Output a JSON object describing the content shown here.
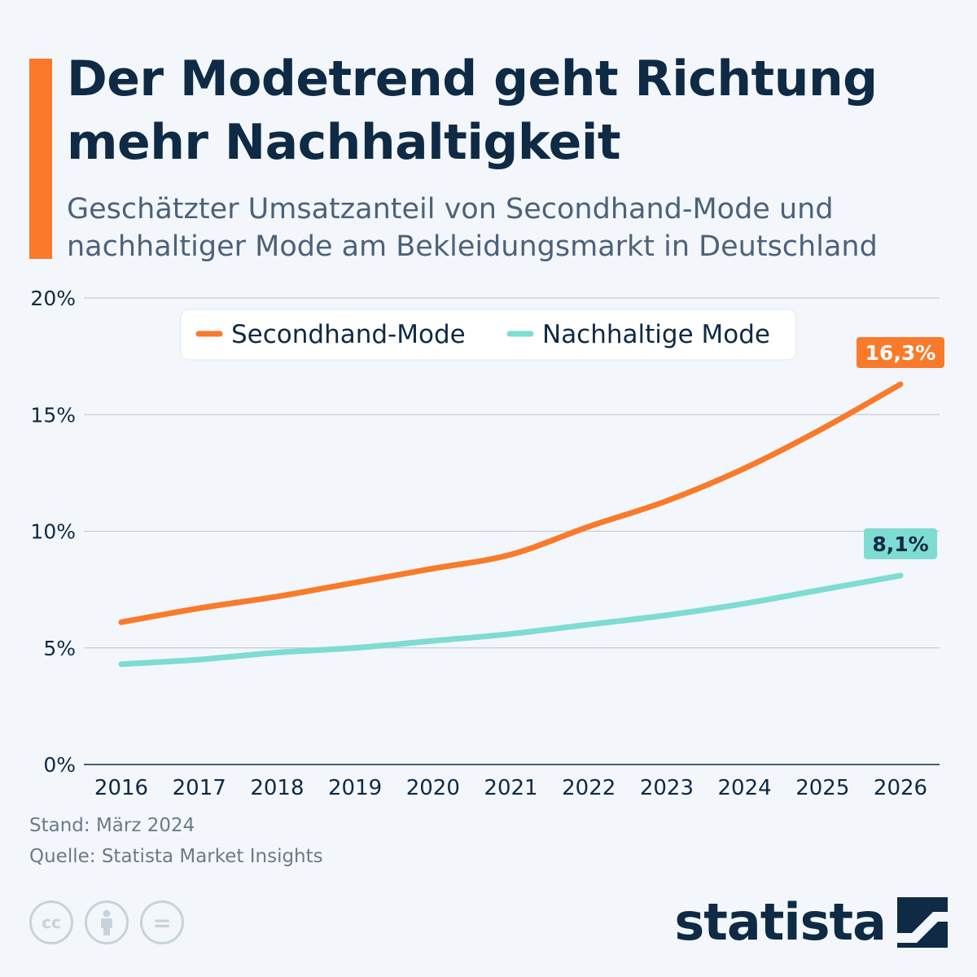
{
  "title": "Der Modetrend geht Richtung mehr Nachhaltigkeit",
  "subtitle": "Geschätzter Umsatzanteil von Secondhand-Mode und nachhaltiger Mode am Bekleidungsmarkt in Deutschland",
  "footer": {
    "stand": "Stand: März 2024",
    "quelle": "Quelle: Statista Market Insights"
  },
  "brand": {
    "name": "statista",
    "accent": "#f97a2a"
  },
  "license_icons": [
    "cc-icon",
    "attribution-icon",
    "no-derivatives-icon"
  ],
  "license_glyphs": {
    "cc": "cc",
    "eq": "="
  },
  "chart_data": {
    "type": "line",
    "categories": [
      "2016",
      "2017",
      "2018",
      "2019",
      "2020",
      "2021",
      "2022",
      "2023",
      "2024",
      "2025",
      "2026"
    ],
    "series": [
      {
        "name": "Secondhand-Mode",
        "color": "#f97a2a",
        "values": [
          6.1,
          6.7,
          7.2,
          7.8,
          8.4,
          9.0,
          10.2,
          11.3,
          12.7,
          14.4,
          16.3
        ],
        "end_label": "16,3%"
      },
      {
        "name": "Nachhaltige Mode",
        "color": "#7edcd2",
        "values": [
          4.3,
          4.5,
          4.8,
          5.0,
          5.3,
          5.6,
          6.0,
          6.4,
          6.9,
          7.5,
          8.1
        ],
        "end_label": "8,1%"
      }
    ],
    "ylim": [
      0,
      20
    ],
    "yticks": [
      0,
      5,
      10,
      15,
      20
    ],
    "ytick_labels": [
      "0%",
      "5%",
      "10%",
      "15%",
      "20%"
    ],
    "grid": true,
    "legend_position": "top-center"
  }
}
